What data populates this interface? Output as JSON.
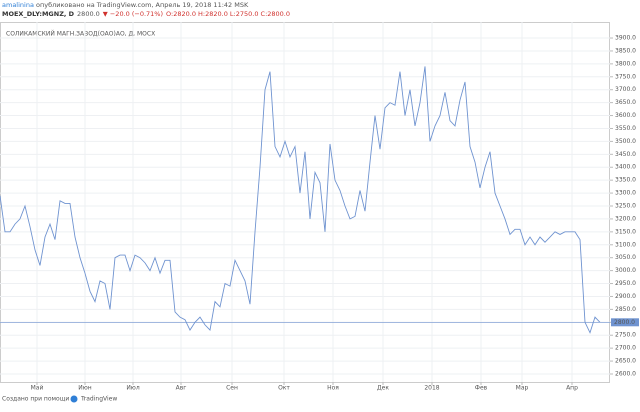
{
  "header": {
    "author": "amalinina",
    "published": " опубликовано на TradingView.com, Апрель 19, 2018 11:42 MSK",
    "symbol": "MOEX_DLY:MGNZ, D",
    "price": "2800.0",
    "change": "▼ −20.0 (−0.71%)",
    "ohlc": "O:2820.0 H:2820.0 L:2750.0 C:2800.0"
  },
  "footer": {
    "text": "Создано при помощи",
    "brand": "TradingView"
  },
  "chart_data": {
    "type": "line",
    "title": "СОЛИКАМСКИЙ МАГН.ЗАВОД(ОАО)АО, Д, МОСХ",
    "series": [
      {
        "name": "MGNZ",
        "color": "#6f93d0",
        "values": [
          3290,
          3150,
          3150,
          3180,
          3200,
          3250,
          3170,
          3080,
          3020,
          3130,
          3180,
          3120,
          3270,
          3260,
          3260,
          3130,
          3050,
          2990,
          2920,
          2880,
          2960,
          2950,
          2850,
          3050,
          3060,
          3060,
          3000,
          3060,
          3050,
          3030,
          3000,
          3050,
          2990,
          3040,
          3040,
          2840,
          2820,
          2810,
          2770,
          2800,
          2820,
          2790,
          2770,
          2880,
          2860,
          2950,
          2940,
          3040,
          3000,
          2960,
          2870,
          3150,
          3400,
          3700,
          3770,
          3480,
          3440,
          3500,
          3440,
          3480,
          3300,
          3460,
          3200,
          3380,
          3340,
          3150,
          3490,
          3350,
          3310,
          3250,
          3200,
          3210,
          3310,
          3230,
          3420,
          3600,
          3470,
          3630,
          3650,
          3640,
          3770,
          3600,
          3700,
          3560,
          3650,
          3790,
          3500,
          3560,
          3600,
          3690,
          3580,
          3560,
          3660,
          3730,
          3480,
          3420,
          3320,
          3400,
          3460,
          3300,
          3250,
          3200,
          3140,
          3160,
          3160,
          3100,
          3130,
          3100,
          3130,
          3110,
          3130,
          3150,
          3140,
          3150,
          3150,
          3150,
          3120,
          2800,
          2760,
          2820,
          2800
        ]
      }
    ],
    "xlim": [
      0,
      122
    ],
    "xticks": [
      {
        "value": 7.4,
        "label": "Май"
      },
      {
        "value": 17,
        "label": "Июн"
      },
      {
        "value": 26.6,
        "label": "Июл"
      },
      {
        "value": 36.2,
        "label": "Авг"
      },
      {
        "value": 46.4,
        "label": "Сен"
      },
      {
        "value": 56.8,
        "label": "Окт"
      },
      {
        "value": 66.6,
        "label": "Ноя"
      },
      {
        "value": 76.6,
        "label": "Дек"
      },
      {
        "value": 86.4,
        "label": "2018"
      },
      {
        "value": 96.2,
        "label": "Фев"
      },
      {
        "value": 104.4,
        "label": "Мар"
      },
      {
        "value": 114.4,
        "label": "Апр"
      }
    ],
    "ylim": [
      2569,
      3962
    ],
    "yticks": [
      {
        "value": 2600,
        "label": "2600.0"
      },
      {
        "value": 2650,
        "label": "2650.0"
      },
      {
        "value": 2700,
        "label": "2700.0"
      },
      {
        "value": 2750,
        "label": "2750.0"
      },
      {
        "value": 2800,
        "label": "2800.0"
      },
      {
        "value": 2850,
        "label": "2850.0"
      },
      {
        "value": 2900,
        "label": "2900.0"
      },
      {
        "value": 2950,
        "label": "2950.0"
      },
      {
        "value": 3000,
        "label": "3000.0"
      },
      {
        "value": 3050,
        "label": "3050.0"
      },
      {
        "value": 3100,
        "label": "3100.0"
      },
      {
        "value": 3150,
        "label": "3150.0"
      },
      {
        "value": 3200,
        "label": "3200.0"
      },
      {
        "value": 3250,
        "label": "3250.0"
      },
      {
        "value": 3300,
        "label": "3300.0"
      },
      {
        "value": 3350,
        "label": "3350.0"
      },
      {
        "value": 3400,
        "label": "3400.0"
      },
      {
        "value": 3450,
        "label": "3450.0"
      },
      {
        "value": 3500,
        "label": "3500.0"
      },
      {
        "value": 3550,
        "label": "3550.0"
      },
      {
        "value": 3600,
        "label": "3600.0"
      },
      {
        "value": 3650,
        "label": "3650.0"
      },
      {
        "value": 3700,
        "label": "3700.0"
      },
      {
        "value": 3750,
        "label": "3750.0"
      },
      {
        "value": 3800,
        "label": "3800.0"
      },
      {
        "value": 3850,
        "label": "3850.0"
      },
      {
        "value": 3900,
        "label": "3900.0"
      }
    ],
    "last_price": {
      "value": 2800,
      "label": "2800.0",
      "color": "#6f93d0"
    },
    "grid": true
  }
}
